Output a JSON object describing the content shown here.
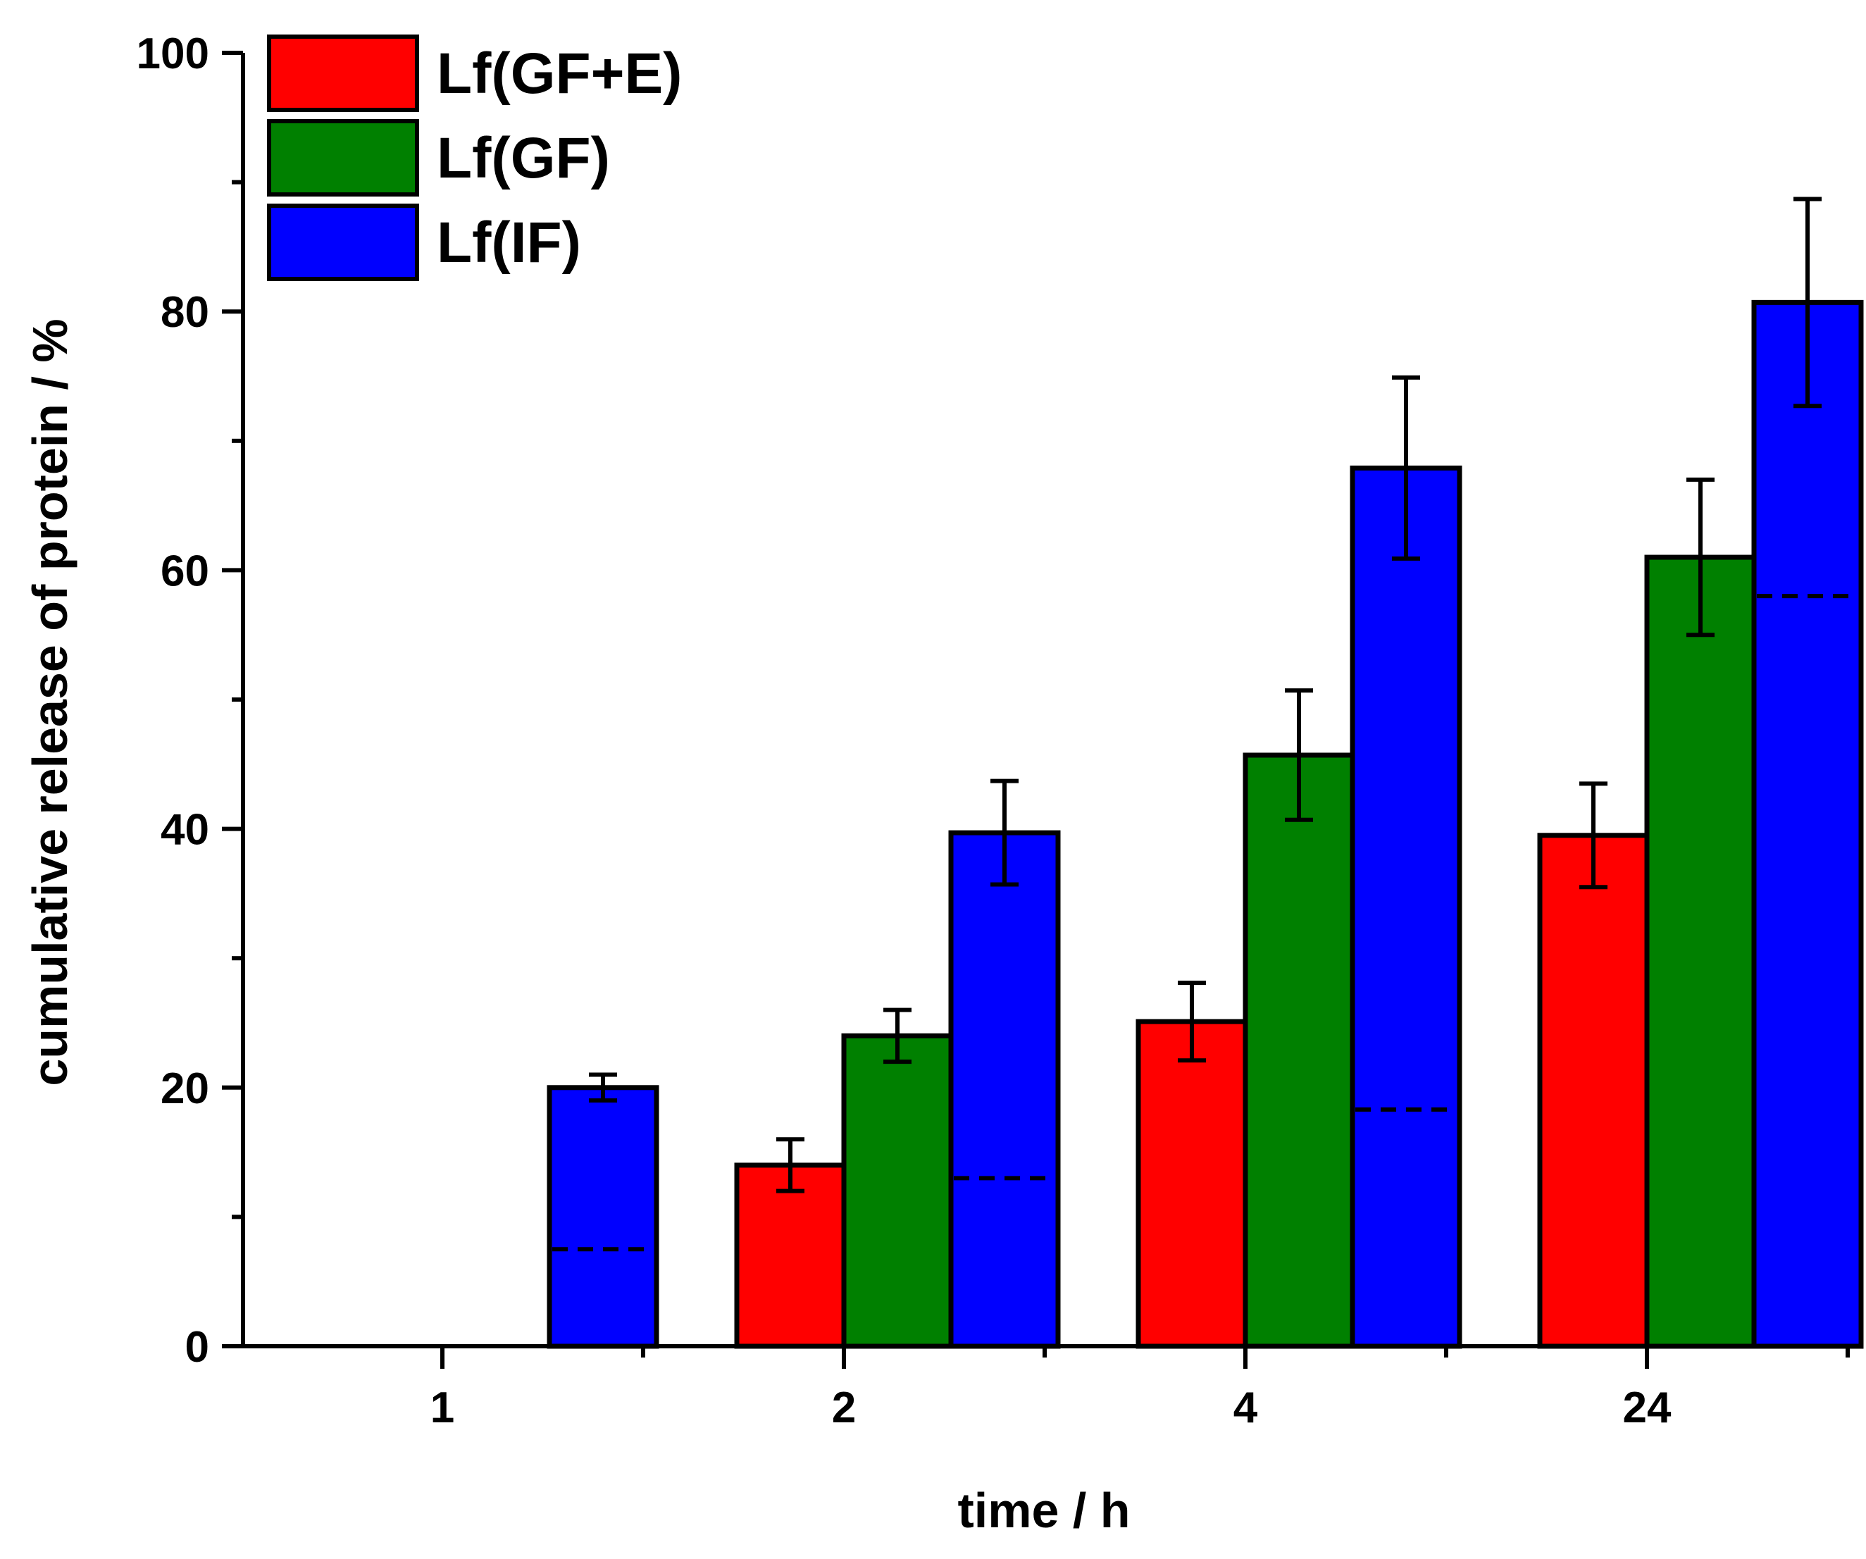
{
  "chart_data": {
    "type": "bar",
    "title": "",
    "xlabel": "time / h",
    "ylabel": "cumulative release of protein / %",
    "categories": [
      "1",
      "2",
      "4",
      "24"
    ],
    "ylim": [
      0,
      100
    ],
    "yticks": [
      0,
      20,
      40,
      60,
      80,
      100
    ],
    "y_minor_step": 10,
    "legend_position": "top-left",
    "series": [
      {
        "name": "Lf(GF+E)",
        "color": "#ff0000",
        "values": [
          null,
          14,
          25.1,
          39.5
        ],
        "errors": [
          null,
          2,
          3,
          4
        ]
      },
      {
        "name": "Lf(GF)",
        "color": "#008000",
        "values": [
          null,
          24,
          45.7,
          61
        ],
        "errors": [
          null,
          2,
          5,
          6
        ]
      },
      {
        "name": "Lf(IF)",
        "color": "#0000ff",
        "values": [
          20,
          39.7,
          67.9,
          80.7
        ],
        "errors": [
          1,
          4,
          7,
          8
        ]
      }
    ],
    "dashed_reference": {
      "series": "Lf(IF)",
      "values": [
        7.5,
        13,
        18.3,
        58
      ]
    }
  }
}
